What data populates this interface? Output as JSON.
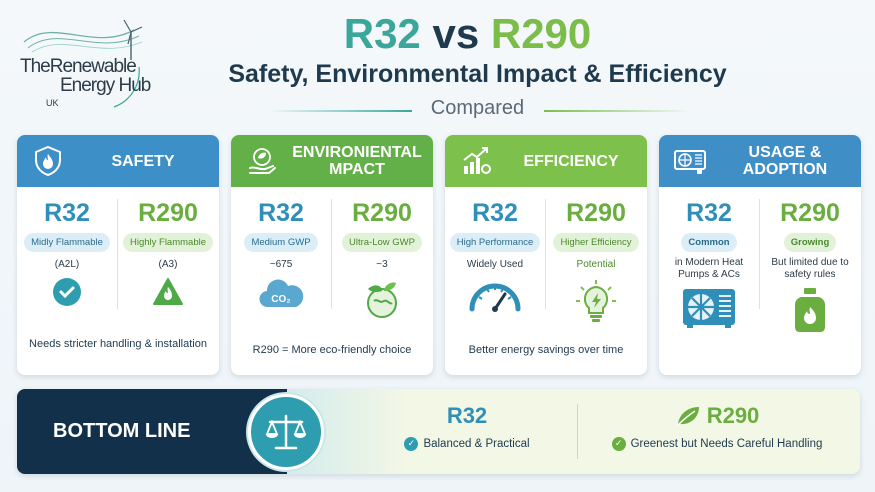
{
  "logo": {
    "line1": "TheRenewable",
    "line2": "Energy Hub",
    "country": "UK"
  },
  "header": {
    "title_a": "R32",
    "title_vs": " vs ",
    "title_b": "R290",
    "subtitle": "Safety, Environmental Impact & Efficiency",
    "compared": "Compared"
  },
  "colors": {
    "teal": "#3aa79a",
    "green": "#7cbd4a",
    "blue": "#3d8fc8",
    "navy": "#123049"
  },
  "cards": [
    {
      "title": "SAFETY",
      "icon": "shield-flame-icon",
      "left": {
        "ref": "R32",
        "pill": "Midly Flammable",
        "value": "(A2L)",
        "icon": "check-circle-icon"
      },
      "right": {
        "ref": "R290",
        "pill": "Highly Flammable",
        "value": "(A3)",
        "icon": "flame-warning-icon"
      },
      "footer": "Needs stricter handling & installation"
    },
    {
      "title": "ENVIRONIENTAL MPACT",
      "icon": "eco-hand-icon",
      "left": {
        "ref": "R32",
        "pill": "Medium GWP",
        "value": "~675",
        "icon": "co2-cloud-icon"
      },
      "right": {
        "ref": "R290",
        "pill": "Ultra-Low GWP",
        "value": "~3",
        "icon": "eco-globe-icon"
      },
      "footer": "R290 = More eco-friendly choice"
    },
    {
      "title": "EFFICIENCY",
      "icon": "growth-chart-icon",
      "left": {
        "ref": "R32",
        "pill": "High Performance",
        "value": "Widely Used",
        "icon": "gauge-icon"
      },
      "right": {
        "ref": "R290",
        "pill": "Higher Efficiency",
        "value": "Potential",
        "icon": "lightbulb-icon"
      },
      "footer": "Better energy savings over time"
    },
    {
      "title": "USAGE & ADOPTION",
      "icon": "ac-unit-icon",
      "left": {
        "ref": "R32",
        "pill": "Common",
        "value": "in Modern Heat Pumps & ACs",
        "icon": "heat-pump-icon"
      },
      "right": {
        "ref": "R290",
        "pill": "Growing",
        "value": "But limited due to safety rules",
        "icon": "gas-cylinder-icon"
      },
      "footer": ""
    }
  ],
  "bottom": {
    "label": "BOTTOM LINE",
    "left": {
      "ref": "R32",
      "text": "Balanced & Practical"
    },
    "right": {
      "ref": "R290",
      "text": "Greenest but Needs Careful Handling"
    }
  }
}
